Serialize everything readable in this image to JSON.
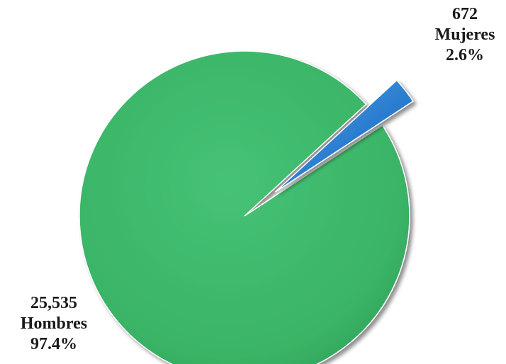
{
  "chart_data": {
    "type": "pie",
    "slices": [
      {
        "count_label": "25,535",
        "category": "Hombres",
        "percent_label": "97.4%",
        "value": 25535,
        "percent": 97.4,
        "color": "#3cb96a",
        "exploded": false
      },
      {
        "count_label": "672",
        "category": "Mujeres",
        "percent_label": "2.6%",
        "value": 672,
        "percent": 2.6,
        "color": "#2f7fd0",
        "exploded": true
      }
    ]
  }
}
